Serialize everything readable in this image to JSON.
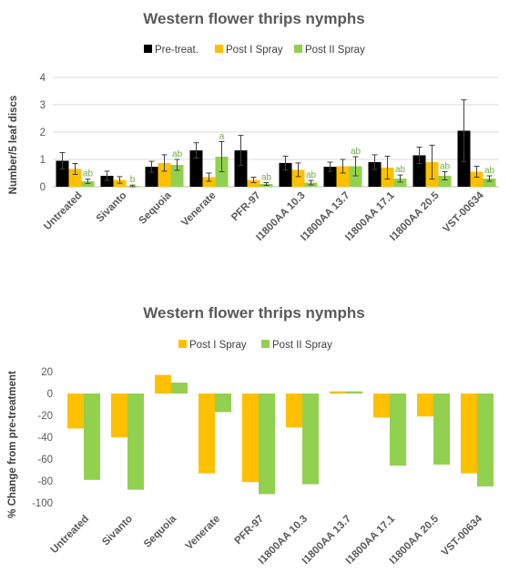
{
  "colors": {
    "pre": "#000000",
    "post1": "#FFC000",
    "post2": "#92D050",
    "grid": "#D9D9D9",
    "sig_text": "#70AD47"
  },
  "chart_data": [
    {
      "type": "bar",
      "title": "Western flower thrips nymphs",
      "ylabel": "Number/5 leaf discs",
      "xlabel": "",
      "ylim": [
        0,
        4
      ],
      "yticks": [
        "0",
        "1",
        "2",
        "3",
        "4"
      ],
      "grid": true,
      "legend_position": "top",
      "categories": [
        "Untreated",
        "Sivanto",
        "Sequoia",
        "Venerate",
        "PFR-97",
        "I1800AA 10.3",
        "I1800AA 13.7",
        "I1800AA 17.1",
        "I1800AA 20.5",
        "VST-00634"
      ],
      "series": [
        {
          "name": "Pre-treat.",
          "color_key": "pre",
          "values": [
            0.95,
            0.4,
            0.73,
            1.33,
            1.33,
            0.87,
            0.73,
            0.9,
            1.15,
            2.05
          ],
          "errors": [
            0.3,
            0.17,
            0.2,
            0.28,
            0.55,
            0.25,
            0.17,
            0.27,
            0.3,
            1.13
          ]
        },
        {
          "name": "Post I Spray",
          "color_key": "post1",
          "values": [
            0.65,
            0.25,
            0.87,
            0.35,
            0.25,
            0.62,
            0.75,
            0.7,
            0.9,
            0.55
          ],
          "errors": [
            0.2,
            0.12,
            0.3,
            0.15,
            0.1,
            0.25,
            0.25,
            0.42,
            0.62,
            0.2
          ]
        },
        {
          "name": "Post II Spray",
          "color_key": "post2",
          "values": [
            0.2,
            0.03,
            0.8,
            1.1,
            0.1,
            0.15,
            0.75,
            0.3,
            0.4,
            0.3
          ],
          "errors": [
            0.08,
            0.03,
            0.2,
            0.55,
            0.05,
            0.08,
            0.35,
            0.13,
            0.15,
            0.1
          ]
        }
      ],
      "annotations": [
        "ab",
        "b",
        "ab",
        "a",
        "ab",
        "ab",
        "ab",
        "ab",
        "ab",
        "ab"
      ]
    },
    {
      "type": "bar",
      "title": "Western flower thrips nymphs",
      "ylabel": "% Change from pre-treatment",
      "xlabel": "",
      "ylim": [
        -100,
        20
      ],
      "yticks": [
        "20",
        "0",
        "-20",
        "-40",
        "-60",
        "-80",
        "-100"
      ],
      "grid": false,
      "legend_position": "top",
      "categories": [
        "Untreated",
        "Sivanto",
        "Sequoia",
        "Venerate",
        "PFR-97",
        "I1800AA 10.3",
        "I1800AA 13.7",
        "I1800AA 17.1",
        "I1800AA 20.5",
        "VST-00634"
      ],
      "series": [
        {
          "name": "Post I Spray",
          "color_key": "post1",
          "values": [
            -32,
            -40,
            17,
            -73,
            -81,
            -31,
            2,
            -22,
            -21,
            -73
          ]
        },
        {
          "name": "Post II Spray",
          "color_key": "post2",
          "values": [
            -79,
            -88,
            10,
            -17,
            -92,
            -83,
            2,
            -66,
            -65,
            -85
          ]
        }
      ]
    }
  ]
}
